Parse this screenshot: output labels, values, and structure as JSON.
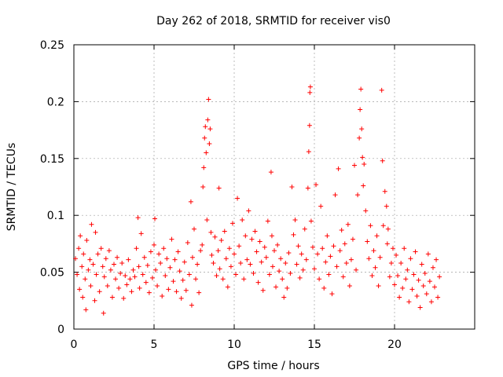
{
  "chart_data": {
    "type": "scatter",
    "title": "Day 262 of 2018, SRMTID for receiver vis0",
    "xlabel": "GPS time / hours",
    "ylabel": "SRMTID / TECUs",
    "xlim": [
      0,
      25
    ],
    "ylim": [
      0,
      0.25
    ],
    "xticks": [
      0,
      5,
      10,
      15,
      20
    ],
    "xtick_labels": [
      "0",
      "5",
      "10",
      "15",
      "20"
    ],
    "yticks": [
      0,
      0.05,
      0.1,
      0.15,
      0.2,
      0.25
    ],
    "ytick_labels": [
      "0",
      "0.05",
      "0.1",
      "0.15",
      "0.2",
      "0.25"
    ],
    "grid": true,
    "marker": "+",
    "color": "#ff0000",
    "series": [
      {
        "name": "SRMTID",
        "points": [
          [
            0.1,
            0.062
          ],
          [
            0.2,
            0.048
          ],
          [
            0.3,
            0.071
          ],
          [
            0.35,
            0.035
          ],
          [
            0.4,
            0.082
          ],
          [
            0.5,
            0.055
          ],
          [
            0.55,
            0.028
          ],
          [
            0.6,
            0.066
          ],
          [
            0.7,
            0.044
          ],
          [
            0.75,
            0.017
          ],
          [
            0.8,
            0.078
          ],
          [
            0.9,
            0.052
          ],
          [
            1.0,
            0.061
          ],
          [
            1.05,
            0.038
          ],
          [
            1.1,
            0.092
          ],
          [
            1.2,
            0.057
          ],
          [
            1.3,
            0.025
          ],
          [
            1.35,
            0.085
          ],
          [
            1.4,
            0.048
          ],
          [
            1.5,
            0.066
          ],
          [
            1.6,
            0.033
          ],
          [
            1.7,
            0.071
          ],
          [
            1.8,
            0.055
          ],
          [
            1.85,
            0.014
          ],
          [
            1.9,
            0.046
          ],
          [
            2.0,
            0.062
          ],
          [
            2.1,
            0.038
          ],
          [
            2.2,
            0.069
          ],
          [
            2.3,
            0.052
          ],
          [
            2.4,
            0.028
          ],
          [
            2.5,
            0.057
          ],
          [
            2.6,
            0.044
          ],
          [
            2.7,
            0.063
          ],
          [
            2.8,
            0.036
          ],
          [
            2.9,
            0.049
          ],
          [
            3.0,
            0.058
          ],
          [
            3.1,
            0.027
          ],
          [
            3.2,
            0.047
          ],
          [
            3.3,
            0.039
          ],
          [
            3.4,
            0.061
          ],
          [
            3.5,
            0.044
          ],
          [
            3.6,
            0.033
          ],
          [
            3.7,
            0.052
          ],
          [
            3.8,
            0.046
          ],
          [
            3.9,
            0.071
          ],
          [
            4.0,
            0.098
          ],
          [
            4.05,
            0.055
          ],
          [
            4.1,
            0.036
          ],
          [
            4.2,
            0.084
          ],
          [
            4.3,
            0.048
          ],
          [
            4.4,
            0.063
          ],
          [
            4.5,
            0.041
          ],
          [
            4.6,
            0.056
          ],
          [
            4.7,
            0.032
          ],
          [
            4.8,
            0.068
          ],
          [
            4.9,
            0.045
          ],
          [
            5.0,
            0.074
          ],
          [
            5.05,
            0.097
          ],
          [
            5.1,
            0.052
          ],
          [
            5.2,
            0.038
          ],
          [
            5.3,
            0.066
          ],
          [
            5.4,
            0.058
          ],
          [
            5.5,
            0.029
          ],
          [
            5.6,
            0.071
          ],
          [
            5.7,
            0.047
          ],
          [
            5.8,
            0.062
          ],
          [
            5.9,
            0.035
          ],
          [
            6.0,
            0.054
          ],
          [
            6.1,
            0.079
          ],
          [
            6.2,
            0.042
          ],
          [
            6.3,
            0.061
          ],
          [
            6.4,
            0.033
          ],
          [
            6.5,
            0.068
          ],
          [
            6.6,
            0.051
          ],
          [
            6.7,
            0.027
          ],
          [
            6.8,
            0.043
          ],
          [
            6.9,
            0.059
          ],
          [
            7.0,
            0.034
          ],
          [
            7.1,
            0.076
          ],
          [
            7.2,
            0.048
          ],
          [
            7.3,
            0.112
          ],
          [
            7.35,
            0.021
          ],
          [
            7.4,
            0.063
          ],
          [
            7.5,
            0.088
          ],
          [
            7.6,
            0.044
          ],
          [
            7.7,
            0.057
          ],
          [
            7.8,
            0.032
          ],
          [
            7.9,
            0.069
          ],
          [
            8.0,
            0.074
          ],
          [
            8.05,
            0.125
          ],
          [
            8.1,
            0.142
          ],
          [
            8.15,
            0.168
          ],
          [
            8.2,
            0.178
          ],
          [
            8.25,
            0.155
          ],
          [
            8.3,
            0.096
          ],
          [
            8.35,
            0.184
          ],
          [
            8.4,
            0.202
          ],
          [
            8.45,
            0.163
          ],
          [
            8.5,
            0.176
          ],
          [
            8.55,
            0.085
          ],
          [
            8.6,
            0.065
          ],
          [
            8.7,
            0.058
          ],
          [
            8.8,
            0.081
          ],
          [
            8.9,
            0.047
          ],
          [
            9.0,
            0.069
          ],
          [
            9.05,
            0.124
          ],
          [
            9.1,
            0.053
          ],
          [
            9.2,
            0.078
          ],
          [
            9.3,
            0.044
          ],
          [
            9.4,
            0.086
          ],
          [
            9.5,
            0.062
          ],
          [
            9.6,
            0.037
          ],
          [
            9.7,
            0.071
          ],
          [
            9.8,
            0.055
          ],
          [
            9.9,
            0.093
          ],
          [
            10.0,
            0.066
          ],
          [
            10.1,
            0.048
          ],
          [
            10.2,
            0.115
          ],
          [
            10.3,
            0.073
          ],
          [
            10.4,
            0.058
          ],
          [
            10.5,
            0.096
          ],
          [
            10.6,
            0.044
          ],
          [
            10.7,
            0.082
          ],
          [
            10.8,
            0.061
          ],
          [
            10.9,
            0.104
          ],
          [
            11.0,
            0.057
          ],
          [
            11.1,
            0.079
          ],
          [
            11.2,
            0.049
          ],
          [
            11.3,
            0.086
          ],
          [
            11.4,
            0.068
          ],
          [
            11.5,
            0.041
          ],
          [
            11.6,
            0.077
          ],
          [
            11.7,
            0.059
          ],
          [
            11.8,
            0.034
          ],
          [
            11.9,
            0.072
          ],
          [
            12.0,
            0.063
          ],
          [
            12.1,
            0.095
          ],
          [
            12.2,
            0.048
          ],
          [
            12.3,
            0.138
          ],
          [
            12.35,
            0.082
          ],
          [
            12.4,
            0.055
          ],
          [
            12.5,
            0.069
          ],
          [
            12.6,
            0.037
          ],
          [
            12.7,
            0.074
          ],
          [
            12.8,
            0.051
          ],
          [
            12.9,
            0.062
          ],
          [
            13.0,
            0.044
          ],
          [
            13.1,
            0.028
          ],
          [
            13.2,
            0.058
          ],
          [
            13.3,
            0.036
          ],
          [
            13.4,
            0.067
          ],
          [
            13.5,
            0.049
          ],
          [
            13.6,
            0.125
          ],
          [
            13.7,
            0.083
          ],
          [
            13.8,
            0.096
          ],
          [
            13.9,
            0.057
          ],
          [
            14.0,
            0.073
          ],
          [
            14.1,
            0.045
          ],
          [
            14.2,
            0.066
          ],
          [
            14.3,
            0.052
          ],
          [
            14.4,
            0.088
          ],
          [
            14.5,
            0.061
          ],
          [
            14.6,
            0.124
          ],
          [
            14.65,
            0.156
          ],
          [
            14.7,
            0.179
          ],
          [
            14.72,
            0.208
          ],
          [
            14.75,
            0.213
          ],
          [
            14.8,
            0.095
          ],
          [
            14.9,
            0.072
          ],
          [
            15.0,
            0.053
          ],
          [
            15.1,
            0.127
          ],
          [
            15.2,
            0.066
          ],
          [
            15.3,
            0.044
          ],
          [
            15.4,
            0.108
          ],
          [
            15.5,
            0.071
          ],
          [
            15.6,
            0.036
          ],
          [
            15.7,
            0.059
          ],
          [
            15.8,
            0.082
          ],
          [
            15.9,
            0.048
          ],
          [
            16.0,
            0.064
          ],
          [
            16.1,
            0.031
          ],
          [
            16.2,
            0.073
          ],
          [
            16.3,
            0.118
          ],
          [
            16.4,
            0.055
          ],
          [
            16.5,
            0.141
          ],
          [
            16.6,
            0.069
          ],
          [
            16.7,
            0.087
          ],
          [
            16.8,
            0.046
          ],
          [
            16.9,
            0.075
          ],
          [
            17.0,
            0.058
          ],
          [
            17.1,
            0.092
          ],
          [
            17.2,
            0.038
          ],
          [
            17.3,
            0.061
          ],
          [
            17.4,
            0.079
          ],
          [
            17.5,
            0.144
          ],
          [
            17.6,
            0.052
          ],
          [
            17.7,
            0.118
          ],
          [
            17.8,
            0.168
          ],
          [
            17.85,
            0.193
          ],
          [
            17.9,
            0.211
          ],
          [
            17.95,
            0.176
          ],
          [
            18.0,
            0.151
          ],
          [
            18.05,
            0.126
          ],
          [
            18.1,
            0.145
          ],
          [
            18.2,
            0.104
          ],
          [
            18.3,
            0.077
          ],
          [
            18.4,
            0.062
          ],
          [
            18.5,
            0.091
          ],
          [
            18.6,
            0.047
          ],
          [
            18.7,
            0.069
          ],
          [
            18.8,
            0.054
          ],
          [
            18.9,
            0.082
          ],
          [
            19.0,
            0.038
          ],
          [
            19.1,
            0.063
          ],
          [
            19.2,
            0.21
          ],
          [
            19.25,
            0.148
          ],
          [
            19.3,
            0.091
          ],
          [
            19.4,
            0.121
          ],
          [
            19.5,
            0.108
          ],
          [
            19.55,
            0.075
          ],
          [
            19.6,
            0.088
          ],
          [
            19.7,
            0.046
          ],
          [
            19.8,
            0.058
          ],
          [
            19.9,
            0.071
          ],
          [
            20.0,
            0.039
          ],
          [
            20.1,
            0.065
          ],
          [
            20.2,
            0.047
          ],
          [
            20.3,
            0.028
          ],
          [
            20.4,
            0.058
          ],
          [
            20.5,
            0.036
          ],
          [
            20.6,
            0.071
          ],
          [
            20.7,
            0.044
          ],
          [
            20.8,
            0.052
          ],
          [
            20.9,
            0.024
          ],
          [
            21.0,
            0.062
          ],
          [
            21.1,
            0.035
          ],
          [
            21.2,
            0.048
          ],
          [
            21.3,
            0.068
          ],
          [
            21.4,
            0.029
          ],
          [
            21.5,
            0.043
          ],
          [
            21.6,
            0.019
          ],
          [
            21.7,
            0.057
          ],
          [
            21.8,
            0.038
          ],
          [
            21.9,
            0.049
          ],
          [
            22.0,
            0.031
          ],
          [
            22.1,
            0.066
          ],
          [
            22.2,
            0.042
          ],
          [
            22.3,
            0.024
          ],
          [
            22.4,
            0.054
          ],
          [
            22.5,
            0.037
          ],
          [
            22.6,
            0.061
          ],
          [
            22.7,
            0.028
          ],
          [
            22.8,
            0.046
          ]
        ]
      }
    ]
  }
}
